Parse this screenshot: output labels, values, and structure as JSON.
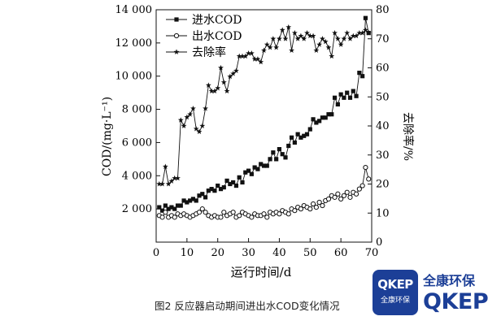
{
  "chart_data": {
    "type": "line",
    "xlabel": "运行时间/d",
    "ylabel_left": "COD/(mg·L⁻¹)",
    "ylabel_right": "去除率/%",
    "xlim": [
      0,
      70
    ],
    "ylim_left": [
      0,
      14000
    ],
    "ylim_right": [
      0,
      80
    ],
    "x_ticks": [
      0,
      10,
      20,
      30,
      40,
      50,
      60,
      70
    ],
    "y_left_ticks": [
      "2 000",
      "4 000",
      "6 000",
      "8 000",
      "10 000",
      "12 000",
      "14 000"
    ],
    "y_left_tick_values": [
      2000,
      4000,
      6000,
      8000,
      10000,
      12000,
      14000
    ],
    "y_right_ticks": [
      0,
      10,
      20,
      30,
      40,
      50,
      60,
      70,
      80
    ],
    "grid": false,
    "legend_position": "top-left",
    "series": [
      {
        "name": "进水COD",
        "axis": "left",
        "marker": "filled-square",
        "points": [
          [
            1,
            2100
          ],
          [
            2,
            1900
          ],
          [
            3,
            2200
          ],
          [
            4,
            2000
          ],
          [
            5,
            2100
          ],
          [
            6,
            2000
          ],
          [
            7,
            2200
          ],
          [
            8,
            2200
          ],
          [
            9,
            2500
          ],
          [
            10,
            2400
          ],
          [
            11,
            2500
          ],
          [
            12,
            2600
          ],
          [
            13,
            2500
          ],
          [
            14,
            2800
          ],
          [
            15,
            2900
          ],
          [
            16,
            2700
          ],
          [
            17,
            3100
          ],
          [
            18,
            3200
          ],
          [
            19,
            3100
          ],
          [
            20,
            3400
          ],
          [
            21,
            3200
          ],
          [
            22,
            3300
          ],
          [
            23,
            3700
          ],
          [
            24,
            3500
          ],
          [
            25,
            3600
          ],
          [
            26,
            3400
          ],
          [
            27,
            3900
          ],
          [
            28,
            3600
          ],
          [
            29,
            4200
          ],
          [
            30,
            4300
          ],
          [
            31,
            4100
          ],
          [
            32,
            4500
          ],
          [
            33,
            4400
          ],
          [
            34,
            4700
          ],
          [
            35,
            4600
          ],
          [
            36,
            4600
          ],
          [
            37,
            5000
          ],
          [
            38,
            5400
          ],
          [
            39,
            5000
          ],
          [
            40,
            5600
          ],
          [
            41,
            5300
          ],
          [
            42,
            5100
          ],
          [
            43,
            5800
          ],
          [
            44,
            6300
          ],
          [
            45,
            6000
          ],
          [
            46,
            6500
          ],
          [
            47,
            6300
          ],
          [
            48,
            6400
          ],
          [
            49,
            6500
          ],
          [
            50,
            6800
          ],
          [
            51,
            7400
          ],
          [
            52,
            7200
          ],
          [
            53,
            7300
          ],
          [
            54,
            7500
          ],
          [
            55,
            7500
          ],
          [
            56,
            7700
          ],
          [
            57,
            7700
          ],
          [
            58,
            8700
          ],
          [
            59,
            8300
          ],
          [
            60,
            8900
          ],
          [
            61,
            8700
          ],
          [
            62,
            9000
          ],
          [
            63,
            8700
          ],
          [
            64,
            9100
          ],
          [
            65,
            8800
          ],
          [
            66,
            10200
          ],
          [
            67,
            10000
          ],
          [
            68,
            13500
          ],
          [
            69,
            12600
          ]
        ]
      },
      {
        "name": "出水COD",
        "axis": "left",
        "marker": "open-circle",
        "points": [
          [
            1,
            1600
          ],
          [
            2,
            1500
          ],
          [
            3,
            1800
          ],
          [
            4,
            1500
          ],
          [
            5,
            1600
          ],
          [
            6,
            1500
          ],
          [
            7,
            1700
          ],
          [
            8,
            1600
          ],
          [
            9,
            1700
          ],
          [
            10,
            1600
          ],
          [
            11,
            1500
          ],
          [
            12,
            1600
          ],
          [
            13,
            1700
          ],
          [
            14,
            1800
          ],
          [
            15,
            2000
          ],
          [
            16,
            1800
          ],
          [
            17,
            1600
          ],
          [
            18,
            1500
          ],
          [
            19,
            1600
          ],
          [
            20,
            1500
          ],
          [
            21,
            1500
          ],
          [
            22,
            1800
          ],
          [
            23,
            1600
          ],
          [
            24,
            1700
          ],
          [
            25,
            1800
          ],
          [
            26,
            1500
          ],
          [
            27,
            1600
          ],
          [
            28,
            1800
          ],
          [
            29,
            1700
          ],
          [
            30,
            1600
          ],
          [
            31,
            1500
          ],
          [
            32,
            1700
          ],
          [
            33,
            1600
          ],
          [
            34,
            1600
          ],
          [
            35,
            1700
          ],
          [
            36,
            1500
          ],
          [
            37,
            1800
          ],
          [
            38,
            1700
          ],
          [
            39,
            1800
          ],
          [
            40,
            1700
          ],
          [
            41,
            1900
          ],
          [
            42,
            1800
          ],
          [
            43,
            1700
          ],
          [
            44,
            2000
          ],
          [
            45,
            1900
          ],
          [
            46,
            2100
          ],
          [
            47,
            2000
          ],
          [
            48,
            2200
          ],
          [
            49,
            2100
          ],
          [
            50,
            2000
          ],
          [
            51,
            2300
          ],
          [
            52,
            2100
          ],
          [
            53,
            2400
          ],
          [
            54,
            2200
          ],
          [
            55,
            2500
          ],
          [
            56,
            2600
          ],
          [
            57,
            2800
          ],
          [
            58,
            2700
          ],
          [
            59,
            2900
          ],
          [
            60,
            2600
          ],
          [
            61,
            2800
          ],
          [
            62,
            3000
          ],
          [
            63,
            2700
          ],
          [
            64,
            3000
          ],
          [
            65,
            2900
          ],
          [
            66,
            3200
          ],
          [
            67,
            3400
          ],
          [
            68,
            4500
          ],
          [
            69,
            3800
          ]
        ]
      },
      {
        "name": "去除率",
        "axis": "right",
        "marker": "star",
        "points": [
          [
            1,
            20
          ],
          [
            2,
            20
          ],
          [
            3,
            26
          ],
          [
            4,
            20
          ],
          [
            5,
            21
          ],
          [
            6,
            22
          ],
          [
            7,
            22
          ],
          [
            8,
            42
          ],
          [
            9,
            40
          ],
          [
            10,
            43
          ],
          [
            11,
            44
          ],
          [
            12,
            46
          ],
          [
            13,
            39
          ],
          [
            14,
            38
          ],
          [
            15,
            40
          ],
          [
            16,
            46
          ],
          [
            17,
            54
          ],
          [
            18,
            52
          ],
          [
            19,
            52
          ],
          [
            20,
            53
          ],
          [
            21,
            60
          ],
          [
            22,
            55
          ],
          [
            23,
            52
          ],
          [
            24,
            57
          ],
          [
            25,
            58
          ],
          [
            26,
            59
          ],
          [
            27,
            64
          ],
          [
            28,
            64
          ],
          [
            29,
            64
          ],
          [
            30,
            65
          ],
          [
            31,
            65
          ],
          [
            32,
            63
          ],
          [
            33,
            63
          ],
          [
            34,
            62
          ],
          [
            35,
            66
          ],
          [
            36,
            68
          ],
          [
            37,
            67
          ],
          [
            38,
            70
          ],
          [
            39,
            67
          ],
          [
            40,
            70
          ],
          [
            41,
            73
          ],
          [
            42,
            70
          ],
          [
            43,
            74
          ],
          [
            44,
            66
          ],
          [
            45,
            72
          ],
          [
            46,
            70
          ],
          [
            47,
            71
          ],
          [
            48,
            70
          ],
          [
            49,
            72
          ],
          [
            50,
            71
          ],
          [
            51,
            71
          ],
          [
            52,
            66
          ],
          [
            53,
            68
          ],
          [
            54,
            70
          ],
          [
            55,
            69
          ],
          [
            56,
            67
          ],
          [
            57,
            64
          ],
          [
            58,
            72
          ],
          [
            59,
            70
          ],
          [
            60,
            68
          ],
          [
            61,
            70
          ],
          [
            62,
            72
          ],
          [
            63,
            70
          ],
          [
            64,
            71
          ],
          [
            65,
            71
          ],
          [
            66,
            72
          ],
          [
            67,
            72
          ],
          [
            68,
            73
          ],
          [
            69,
            72
          ]
        ]
      }
    ]
  },
  "caption": "图2 反应器启动期间进出水COD变化情况",
  "logo": {
    "badge_top": "QKEP",
    "badge_bottom": "全康环保",
    "name_cn": "全康环保",
    "name_en": "QKEP",
    "color": "#1c3f97"
  }
}
